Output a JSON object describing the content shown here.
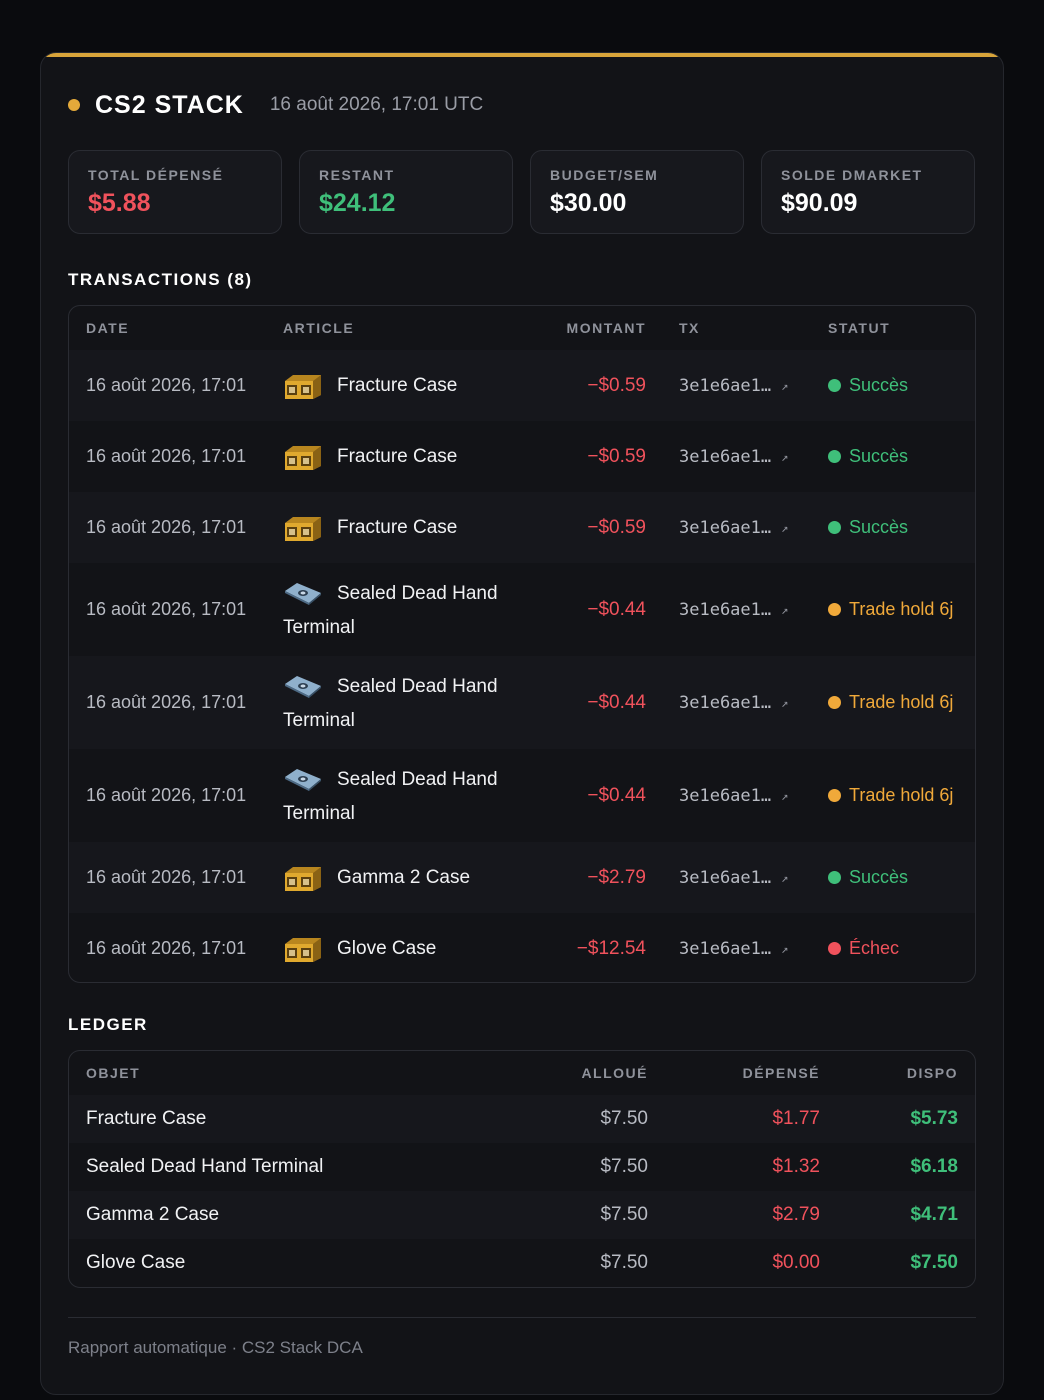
{
  "header": {
    "title": "CS2 STACK",
    "date": "16 août 2026, 17:01 UTC"
  },
  "stats": [
    {
      "label": "TOTAL DÉPENSÉ",
      "value": "$5.88",
      "color": "#f0525c"
    },
    {
      "label": "RESTANT",
      "value": "$24.12",
      "color": "#3fbf7a"
    },
    {
      "label": "BUDGET/SEM",
      "value": "$30.00",
      "color": "#ffffff"
    },
    {
      "label": "SOLDE DMARKET",
      "value": "$90.09",
      "color": "#ffffff"
    }
  ],
  "transactions": {
    "title": "TRANSACTIONS (8)",
    "columns": {
      "date": "DATE",
      "article": "ARTICLE",
      "amount": "MONTANT",
      "tx": "TX",
      "status": "STATUT"
    },
    "rows": [
      {
        "date": "16 août 2026, 17:01",
        "icon": "case-icon",
        "name_line1": "Fracture Case",
        "name_line2": "",
        "amount": "−$0.59",
        "tx": "3e1e6ae1…",
        "status": "Succès",
        "status_color": "#3fbf7a"
      },
      {
        "date": "16 août 2026, 17:01",
        "icon": "case-icon",
        "name_line1": "Fracture Case",
        "name_line2": "",
        "amount": "−$0.59",
        "tx": "3e1e6ae1…",
        "status": "Succès",
        "status_color": "#3fbf7a"
      },
      {
        "date": "16 août 2026, 17:01",
        "icon": "case-icon",
        "name_line1": "Fracture Case",
        "name_line2": "",
        "amount": "−$0.59",
        "tx": "3e1e6ae1…",
        "status": "Succès",
        "status_color": "#3fbf7a"
      },
      {
        "date": "16 août 2026, 17:01",
        "icon": "terminal-icon",
        "name_line1": "Sealed Dead Hand",
        "name_line2": "Terminal",
        "amount": "−$0.44",
        "tx": "3e1e6ae1…",
        "status": "Trade hold 6j",
        "status_color": "#f0a93a"
      },
      {
        "date": "16 août 2026, 17:01",
        "icon": "terminal-icon",
        "name_line1": "Sealed Dead Hand",
        "name_line2": "Terminal",
        "amount": "−$0.44",
        "tx": "3e1e6ae1…",
        "status": "Trade hold 6j",
        "status_color": "#f0a93a"
      },
      {
        "date": "16 août 2026, 17:01",
        "icon": "terminal-icon",
        "name_line1": "Sealed Dead Hand",
        "name_line2": "Terminal",
        "amount": "−$0.44",
        "tx": "3e1e6ae1…",
        "status": "Trade hold 6j",
        "status_color": "#f0a93a"
      },
      {
        "date": "16 août 2026, 17:01",
        "icon": "case-icon",
        "name_line1": "Gamma 2 Case",
        "name_line2": "",
        "amount": "−$2.79",
        "tx": "3e1e6ae1…",
        "status": "Succès",
        "status_color": "#3fbf7a"
      },
      {
        "date": "16 août 2026, 17:01",
        "icon": "case-icon",
        "name_line1": "Glove Case",
        "name_line2": "",
        "amount": "−$12.54",
        "tx": "3e1e6ae1…",
        "status": "Échec",
        "status_color": "#f0525c"
      }
    ]
  },
  "ledger": {
    "title": "LEDGER",
    "columns": {
      "object": "OBJET",
      "allocated": "ALLOUÉ",
      "spent": "DÉPENSÉ",
      "available": "DISPO"
    },
    "rows": [
      {
        "object": "Fracture Case",
        "allocated": "$7.50",
        "spent": "$1.77",
        "available": "$5.73"
      },
      {
        "object": "Sealed Dead Hand Terminal",
        "allocated": "$7.50",
        "spent": "$1.32",
        "available": "$6.18"
      },
      {
        "object": "Gamma 2 Case",
        "allocated": "$7.50",
        "spent": "$2.79",
        "available": "$4.71"
      },
      {
        "object": "Glove Case",
        "allocated": "$7.50",
        "spent": "$0.00",
        "available": "$7.50"
      }
    ]
  },
  "footer": {
    "text": "Rapport automatique · CS2 Stack DCA"
  }
}
